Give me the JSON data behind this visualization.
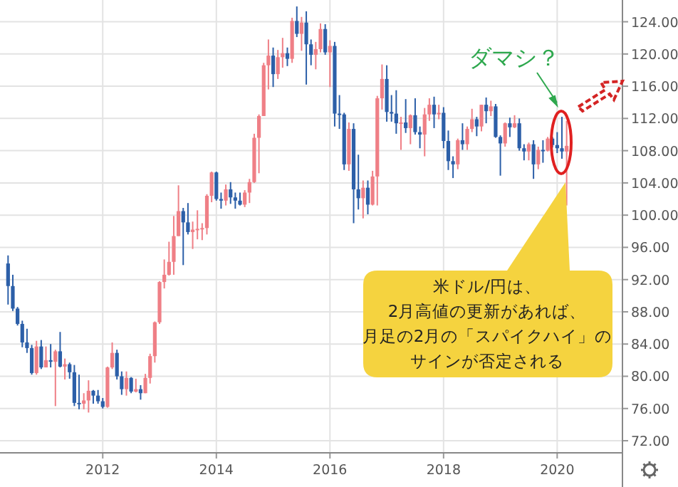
{
  "chart_data": {
    "type": "candlestick",
    "x": [
      "2010-05",
      "2010-06",
      "2010-07",
      "2010-08",
      "2010-09",
      "2010-10",
      "2010-11",
      "2010-12",
      "2011-01",
      "2011-02",
      "2011-03",
      "2011-04",
      "2011-05",
      "2011-06",
      "2011-07",
      "2011-08",
      "2011-09",
      "2011-10",
      "2011-11",
      "2011-12",
      "2012-01",
      "2012-02",
      "2012-03",
      "2012-04",
      "2012-05",
      "2012-06",
      "2012-07",
      "2012-08",
      "2012-09",
      "2012-10",
      "2012-11",
      "2012-12",
      "2013-01",
      "2013-02",
      "2013-03",
      "2013-04",
      "2013-05",
      "2013-06",
      "2013-07",
      "2013-08",
      "2013-09",
      "2013-10",
      "2013-11",
      "2013-12",
      "2014-01",
      "2014-02",
      "2014-03",
      "2014-04",
      "2014-05",
      "2014-06",
      "2014-07",
      "2014-08",
      "2014-09",
      "2014-10",
      "2014-11",
      "2014-12",
      "2015-01",
      "2015-02",
      "2015-03",
      "2015-04",
      "2015-05",
      "2015-06",
      "2015-07",
      "2015-08",
      "2015-09",
      "2015-10",
      "2015-11",
      "2015-12",
      "2016-01",
      "2016-02",
      "2016-03",
      "2016-04",
      "2016-05",
      "2016-06",
      "2016-07",
      "2016-08",
      "2016-09",
      "2016-10",
      "2016-11",
      "2016-12",
      "2017-01",
      "2017-02",
      "2017-03",
      "2017-04",
      "2017-05",
      "2017-06",
      "2017-07",
      "2017-08",
      "2017-09",
      "2017-10",
      "2017-11",
      "2017-12",
      "2018-01",
      "2018-02",
      "2018-03",
      "2018-04",
      "2018-05",
      "2018-06",
      "2018-07",
      "2018-08",
      "2018-09",
      "2018-10",
      "2018-11",
      "2018-12",
      "2019-01",
      "2019-02",
      "2019-03",
      "2019-04",
      "2019-05",
      "2019-06",
      "2019-07",
      "2019-08",
      "2019-09",
      "2019-10",
      "2019-11",
      "2019-12",
      "2020-01",
      "2020-02",
      "2020-03"
    ],
    "ohlc": [
      [
        94.0,
        95.0,
        88.9,
        91.2
      ],
      [
        91.2,
        92.6,
        88.1,
        88.4
      ],
      [
        88.4,
        88.6,
        86.3,
        86.5
      ],
      [
        86.5,
        86.9,
        83.6,
        84.2
      ],
      [
        84.2,
        85.9,
        82.9,
        83.5
      ],
      [
        83.5,
        83.9,
        80.2,
        80.4
      ],
      [
        80.4,
        84.4,
        80.2,
        83.7
      ],
      [
        83.7,
        84.5,
        80.9,
        81.1
      ],
      [
        81.1,
        83.7,
        81.1,
        82.0
      ],
      [
        82.0,
        84.0,
        81.1,
        81.8
      ],
      [
        81.8,
        83.3,
        76.3,
        83.1
      ],
      [
        83.1,
        85.5,
        81.1,
        81.2
      ],
      [
        81.2,
        82.2,
        79.6,
        81.5
      ],
      [
        81.5,
        81.7,
        79.7,
        80.5
      ],
      [
        80.5,
        81.4,
        76.3,
        76.7
      ],
      [
        76.7,
        80.2,
        75.9,
        76.6
      ],
      [
        76.6,
        77.9,
        75.9,
        77.0
      ],
      [
        77.0,
        79.5,
        75.5,
        78.2
      ],
      [
        78.2,
        78.3,
        76.6,
        77.6
      ],
      [
        77.6,
        78.3,
        76.6,
        76.9
      ],
      [
        76.9,
        77.3,
        76.0,
        76.2
      ],
      [
        76.2,
        81.2,
        76.1,
        81.1
      ],
      [
        81.1,
        84.2,
        80.9,
        82.9
      ],
      [
        82.9,
        83.3,
        79.6,
        80.0
      ],
      [
        80.0,
        80.6,
        77.7,
        78.4
      ],
      [
        78.4,
        80.6,
        77.6,
        79.8
      ],
      [
        79.8,
        79.9,
        77.9,
        78.1
      ],
      [
        78.1,
        79.7,
        78.0,
        78.4
      ],
      [
        78.4,
        78.9,
        77.1,
        77.9
      ],
      [
        77.9,
        80.3,
        77.9,
        79.8
      ],
      [
        79.8,
        82.8,
        79.1,
        82.5
      ],
      [
        82.5,
        86.8,
        81.7,
        86.7
      ],
      [
        86.7,
        91.8,
        86.5,
        91.7
      ],
      [
        91.7,
        94.5,
        90.9,
        92.6
      ],
      [
        92.6,
        96.7,
        92.5,
        94.2
      ],
      [
        94.2,
        99.9,
        92.6,
        97.4
      ],
      [
        97.4,
        103.7,
        97.4,
        100.5
      ],
      [
        100.5,
        100.9,
        93.8,
        99.1
      ],
      [
        99.1,
        101.5,
        97.6,
        97.9
      ],
      [
        97.9,
        99.2,
        95.8,
        98.2
      ],
      [
        98.2,
        100.6,
        97.0,
        98.3
      ],
      [
        98.3,
        99.0,
        96.9,
        98.4
      ],
      [
        98.4,
        102.6,
        97.6,
        102.4
      ],
      [
        102.4,
        105.4,
        101.6,
        105.3
      ],
      [
        105.3,
        105.4,
        101.8,
        102.0
      ],
      [
        102.0,
        102.8,
        100.8,
        101.8
      ],
      [
        101.8,
        103.8,
        101.2,
        103.2
      ],
      [
        103.2,
        104.1,
        101.4,
        102.2
      ],
      [
        102.2,
        102.8,
        100.8,
        101.8
      ],
      [
        101.8,
        102.8,
        101.2,
        101.3
      ],
      [
        101.3,
        103.1,
        101.0,
        102.8
      ],
      [
        102.8,
        104.5,
        101.5,
        104.1
      ],
      [
        104.1,
        110.1,
        104.0,
        109.6
      ],
      [
        109.6,
        112.5,
        105.2,
        112.3
      ],
      [
        112.3,
        118.9,
        112.3,
        118.6
      ],
      [
        118.6,
        121.8,
        115.6,
        119.8
      ],
      [
        119.8,
        120.8,
        115.9,
        117.5
      ],
      [
        117.5,
        120.5,
        116.9,
        119.6
      ],
      [
        119.6,
        122.0,
        118.3,
        120.1
      ],
      [
        120.1,
        120.8,
        118.5,
        119.4
      ],
      [
        119.4,
        124.5,
        118.9,
        124.1
      ],
      [
        124.1,
        125.9,
        122.1,
        122.5
      ],
      [
        122.5,
        124.6,
        120.4,
        123.9
      ],
      [
        123.9,
        125.3,
        116.2,
        121.2
      ],
      [
        121.2,
        121.8,
        118.6,
        119.9
      ],
      [
        119.9,
        121.5,
        118.1,
        120.6
      ],
      [
        120.6,
        123.8,
        120.2,
        123.1
      ],
      [
        123.1,
        123.7,
        119.9,
        120.2
      ],
      [
        120.2,
        121.7,
        115.9,
        121.0
      ],
      [
        121.0,
        121.5,
        111.0,
        112.6
      ],
      [
        112.6,
        114.9,
        110.7,
        112.5
      ],
      [
        112.5,
        112.7,
        105.6,
        106.3
      ],
      [
        106.3,
        111.5,
        105.5,
        110.7
      ],
      [
        110.7,
        111.4,
        99.0,
        103.2
      ],
      [
        103.2,
        107.5,
        100.7,
        102.1
      ],
      [
        102.1,
        104.3,
        99.6,
        103.4
      ],
      [
        103.4,
        104.3,
        100.1,
        101.3
      ],
      [
        101.3,
        105.5,
        101.2,
        104.8
      ],
      [
        104.8,
        114.8,
        101.2,
        114.5
      ],
      [
        114.5,
        118.7,
        113.1,
        116.9
      ],
      [
        116.9,
        118.6,
        111.6,
        112.8
      ],
      [
        112.8,
        114.9,
        111.6,
        112.6
      ],
      [
        112.6,
        115.5,
        110.1,
        111.4
      ],
      [
        111.4,
        112.2,
        108.1,
        111.5
      ],
      [
        111.5,
        114.4,
        110.2,
        110.8
      ],
      [
        110.8,
        112.5,
        108.8,
        112.4
      ],
      [
        112.4,
        114.5,
        110.0,
        110.3
      ],
      [
        110.3,
        111.0,
        108.3,
        110.0
      ],
      [
        110.0,
        113.3,
        107.3,
        112.5
      ],
      [
        112.5,
        114.5,
        111.7,
        113.7
      ],
      [
        113.7,
        114.7,
        110.8,
        112.5
      ],
      [
        112.5,
        113.7,
        111.9,
        112.7
      ],
      [
        112.7,
        113.4,
        108.3,
        109.2
      ],
      [
        109.2,
        110.5,
        105.6,
        106.7
      ],
      [
        106.7,
        107.3,
        104.6,
        106.3
      ],
      [
        106.3,
        109.5,
        105.7,
        109.3
      ],
      [
        109.3,
        111.4,
        108.1,
        108.8
      ],
      [
        108.8,
        111.0,
        108.1,
        110.7
      ],
      [
        110.7,
        113.2,
        110.3,
        111.9
      ],
      [
        111.9,
        112.2,
        109.8,
        111.0
      ],
      [
        111.0,
        113.7,
        110.4,
        113.7
      ],
      [
        113.7,
        114.6,
        111.4,
        112.9
      ],
      [
        112.9,
        114.2,
        112.3,
        113.5
      ],
      [
        113.5,
        113.8,
        109.6,
        109.7
      ],
      [
        109.7,
        109.9,
        104.9,
        108.9
      ],
      [
        108.9,
        111.5,
        108.5,
        111.4
      ],
      [
        111.4,
        112.1,
        109.7,
        110.9
      ],
      [
        110.9,
        112.4,
        110.8,
        111.4
      ],
      [
        111.4,
        112.0,
        108.0,
        108.3
      ],
      [
        108.3,
        108.8,
        106.8,
        107.9
      ],
      [
        107.9,
        109.0,
        106.8,
        108.8
      ],
      [
        108.8,
        109.3,
        104.5,
        106.3
      ],
      [
        106.3,
        108.5,
        105.7,
        108.1
      ],
      [
        108.1,
        109.3,
        106.5,
        108.0
      ],
      [
        108.0,
        109.7,
        107.9,
        109.5
      ],
      [
        109.5,
        109.7,
        108.4,
        108.7
      ],
      [
        108.7,
        110.3,
        107.7,
        108.3
      ],
      [
        108.3,
        112.2,
        107.0,
        107.9
      ],
      [
        107.9,
        111.7,
        101.2,
        108.6
      ]
    ],
    "colors": [
      "#2c5fa8",
      "#2c5fa8",
      "#2c5fa8",
      "#2c5fa8",
      "#2c5fa8",
      "#2c5fa8",
      "#ef7f86",
      "#2c5fa8",
      "#ef7f86",
      "#2c5fa8",
      "#ef7f86",
      "#2c5fa8",
      "#ef7f86",
      "#2c5fa8",
      "#2c5fa8",
      "#2c5fa8",
      "#ef7f86",
      "#ef7f86",
      "#2c5fa8",
      "#2c5fa8",
      "#2c5fa8",
      "#ef7f86",
      "#ef7f86",
      "#2c5fa8",
      "#2c5fa8",
      "#ef7f86",
      "#2c5fa8",
      "#ef7f86",
      "#2c5fa8",
      "#ef7f86",
      "#ef7f86",
      "#ef7f86",
      "#ef7f86",
      "#ef7f86",
      "#ef7f86",
      "#ef7f86",
      "#ef7f86",
      "#2c5fa8",
      "#2c5fa8",
      "#ef7f86",
      "#ef7f86",
      "#ef7f86",
      "#ef7f86",
      "#ef7f86",
      "#2c5fa8",
      "#2c5fa8",
      "#ef7f86",
      "#2c5fa8",
      "#2c5fa8",
      "#2c5fa8",
      "#ef7f86",
      "#ef7f86",
      "#ef7f86",
      "#ef7f86",
      "#ef7f86",
      "#ef7f86",
      "#2c5fa8",
      "#ef7f86",
      "#ef7f86",
      "#2c5fa8",
      "#ef7f86",
      "#2c5fa8",
      "#ef7f86",
      "#2c5fa8",
      "#2c5fa8",
      "#ef7f86",
      "#ef7f86",
      "#2c5fa8",
      "#ef7f86",
      "#2c5fa8",
      "#2c5fa8",
      "#2c5fa8",
      "#ef7f86",
      "#2c5fa8",
      "#2c5fa8",
      "#ef7f86",
      "#2c5fa8",
      "#ef7f86",
      "#ef7f86",
      "#ef7f86",
      "#2c5fa8",
      "#2c5fa8",
      "#2c5fa8",
      "#ef7f86",
      "#2c5fa8",
      "#ef7f86",
      "#2c5fa8",
      "#2c5fa8",
      "#ef7f86",
      "#ef7f86",
      "#2c5fa8",
      "#ef7f86",
      "#2c5fa8",
      "#2c5fa8",
      "#2c5fa8",
      "#ef7f86",
      "#2c5fa8",
      "#ef7f86",
      "#ef7f86",
      "#2c5fa8",
      "#ef7f86",
      "#2c5fa8",
      "#ef7f86",
      "#2c5fa8",
      "#2c5fa8",
      "#ef7f86",
      "#2c5fa8",
      "#ef7f86",
      "#2c5fa8",
      "#2c5fa8",
      "#ef7f86",
      "#2c5fa8",
      "#ef7f86",
      "#2c5fa8",
      "#ef7f86",
      "#2c5fa8",
      "#2c5fa8",
      "#2c5fa8",
      "#ef7f86"
    ],
    "xlim": [
      "2010-03-10",
      "2021-02-25"
    ],
    "xticks": [
      "2012",
      "2014",
      "2016",
      "2018",
      "2020"
    ],
    "ylim": [
      70.5,
      126.7
    ],
    "yticks": [
      {
        "value": 72,
        "label": "72.00"
      },
      {
        "value": 76,
        "label": "76.00"
      },
      {
        "value": 80,
        "label": "80.00"
      },
      {
        "value": 84,
        "label": "84.00"
      },
      {
        "value": 88,
        "label": "88.00"
      },
      {
        "value": 92,
        "label": "92.00"
      },
      {
        "value": 96,
        "label": "96.00"
      },
      {
        "value": 100,
        "label": "100.00"
      },
      {
        "value": 104,
        "label": "104.00"
      },
      {
        "value": 108,
        "label": "108.00"
      },
      {
        "value": 112,
        "label": "112.00"
      },
      {
        "value": 116,
        "label": "116.00"
      },
      {
        "value": 120,
        "label": "120.00"
      },
      {
        "value": 124,
        "label": "124.00"
      }
    ],
    "grid": true,
    "annotations": [
      "ダマシ？",
      "米ドル/円は、",
      "2月高値の更新があれば、",
      "月足の2月の「スパイクハイ」の",
      "サインが否定される"
    ]
  }
}
